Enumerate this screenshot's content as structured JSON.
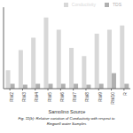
{
  "chart_data": {
    "type": "bar",
    "title": "Fig. 11(b): Relative variation of Conductivity with respect to",
    "subtitle": "Ringwell water Samples",
    "x_label": "Sampling Source",
    "categories": [
      "RW2",
      "RW3",
      "RW4",
      "RW5",
      "RW6",
      "RW7",
      "RW8",
      "RW9",
      "RW10",
      "R"
    ],
    "series": [
      {
        "name": "Conductivity",
        "color": "#d8d8d8",
        "values": [
          0.45,
          0.95,
          1.25,
          1.75,
          1.45,
          1.0,
          0.8,
          1.35,
          1.45,
          1.55
        ]
      },
      {
        "name": "TDS",
        "color": "#b0b0b0",
        "values": [
          0.12,
          0.1,
          0.12,
          0.12,
          0.12,
          0.12,
          0.1,
          0.12,
          0.38,
          0.12
        ]
      }
    ],
    "ylim": [
      0,
      2.0
    ],
    "yticks": [],
    "grid": false,
    "legend": "upper right",
    "tick_labels": "x"
  }
}
